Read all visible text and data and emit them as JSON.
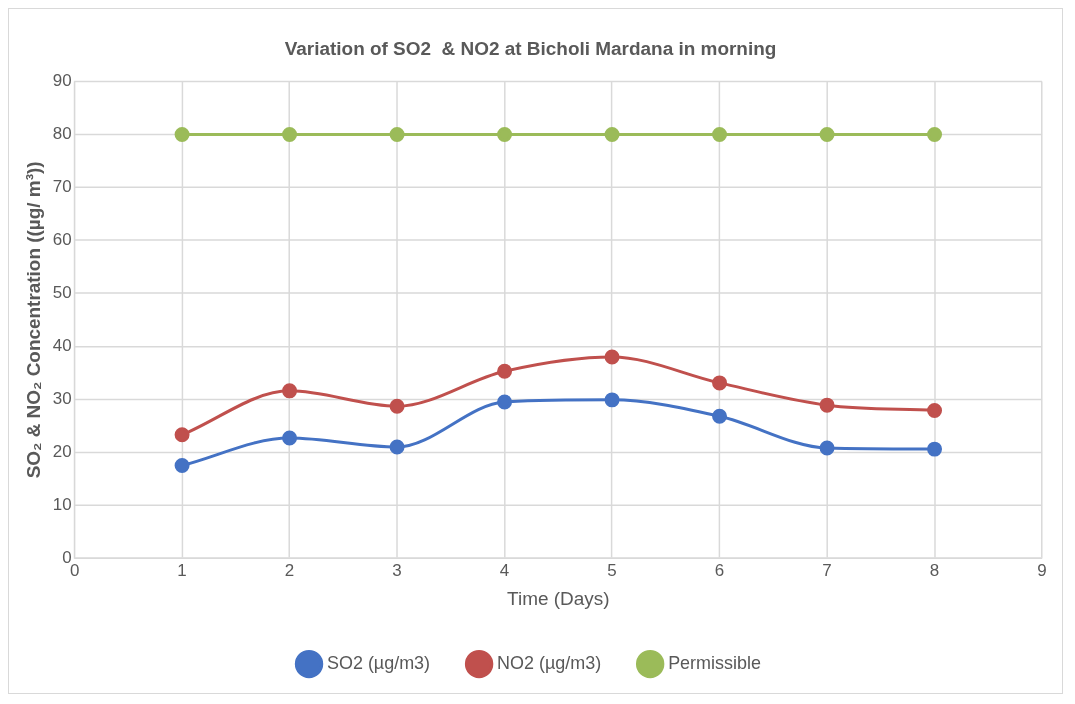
{
  "chart_data": {
    "type": "line",
    "title": "Variation of SO2  & NO2 at Bicholi Mardana in morning",
    "xlabel": "Time (Days)",
    "ylabel": "SO₂ & NO₂ Concentration ((µg/ m³))",
    "x": [
      1,
      2,
      3,
      4,
      5,
      6,
      7,
      8
    ],
    "series": [
      {
        "name": "SO2 (µg/m3)",
        "color": "#4472c4",
        "values": [
          17.5,
          22.7,
          21.0,
          29.5,
          29.9,
          26.8,
          20.8,
          20.6
        ]
      },
      {
        "name": "NO2 (µg/m3)",
        "color": "#c0504d",
        "values": [
          23.3,
          31.6,
          28.7,
          35.3,
          38.0,
          33.1,
          28.9,
          27.9
        ]
      },
      {
        "name": "Permissible",
        "color": "#9bbb59",
        "values": [
          80,
          80,
          80,
          80,
          80,
          80,
          80,
          80
        ]
      }
    ],
    "xlim": [
      0,
      9
    ],
    "xticks": [
      0,
      1,
      2,
      3,
      4,
      5,
      6,
      7,
      8,
      9
    ],
    "ylim": [
      0,
      90
    ],
    "yticks": [
      0,
      10,
      20,
      30,
      40,
      50,
      60,
      70,
      80,
      90
    ],
    "grid": true,
    "legend": "bottom",
    "marker": "circle",
    "line_style": "solid"
  }
}
